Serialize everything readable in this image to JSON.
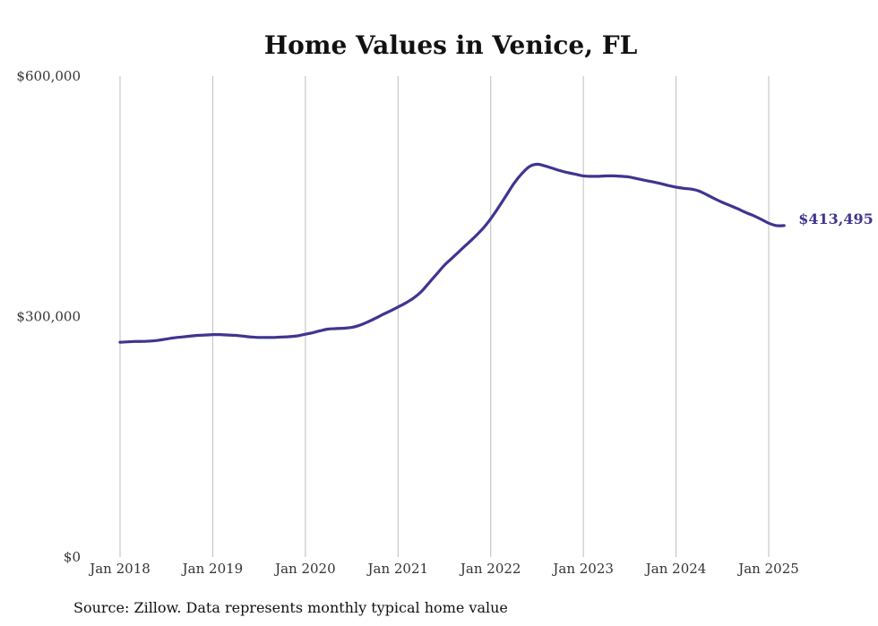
{
  "chart_data": {
    "type": "line",
    "title": "Home Values in Venice, FL",
    "xlabel": "",
    "ylabel": "",
    "ylim": [
      0,
      600000
    ],
    "y_ticks": [
      {
        "value": 0,
        "label": "$0"
      },
      {
        "value": 300000,
        "label": "$300,000"
      },
      {
        "value": 600000,
        "label": "$600,000"
      }
    ],
    "x_ticks": [
      {
        "value": "2018-01",
        "label": "Jan 2018"
      },
      {
        "value": "2019-01",
        "label": "Jan 2019"
      },
      {
        "value": "2020-01",
        "label": "Jan 2020"
      },
      {
        "value": "2021-01",
        "label": "Jan 2021"
      },
      {
        "value": "2022-01",
        "label": "Jan 2022"
      },
      {
        "value": "2023-01",
        "label": "Jan 2023"
      },
      {
        "value": "2024-01",
        "label": "Jan 2024"
      },
      {
        "value": "2025-01",
        "label": "Jan 2025"
      }
    ],
    "grid": {
      "vertical": true,
      "horizontal": false
    },
    "line_color": "#3f3590",
    "end_label": "$413,495",
    "series": [
      {
        "x": [
          "2018-01",
          "2018-02",
          "2018-03",
          "2018-04",
          "2018-05",
          "2018-06",
          "2018-07",
          "2018-08",
          "2018-09",
          "2018-10",
          "2018-11",
          "2018-12",
          "2019-01",
          "2019-02",
          "2019-03",
          "2019-04",
          "2019-05",
          "2019-06",
          "2019-07",
          "2019-08",
          "2019-09",
          "2019-10",
          "2019-11",
          "2019-12",
          "2020-01",
          "2020-02",
          "2020-03",
          "2020-04",
          "2020-05",
          "2020-06",
          "2020-07",
          "2020-08",
          "2020-09",
          "2020-10",
          "2020-11",
          "2020-12",
          "2021-01",
          "2021-02",
          "2021-03",
          "2021-04",
          "2021-05",
          "2021-06",
          "2021-07",
          "2021-08",
          "2021-09",
          "2021-10",
          "2021-11",
          "2021-12",
          "2022-01",
          "2022-02",
          "2022-03",
          "2022-04",
          "2022-05",
          "2022-06",
          "2022-07",
          "2022-08",
          "2022-09",
          "2022-10",
          "2022-11",
          "2022-12",
          "2023-01",
          "2023-02",
          "2023-03",
          "2023-04",
          "2023-05",
          "2023-06",
          "2023-07",
          "2023-08",
          "2023-09",
          "2023-10",
          "2023-11",
          "2023-12",
          "2024-01",
          "2024-02",
          "2024-03",
          "2024-04",
          "2024-05",
          "2024-06",
          "2024-07",
          "2024-08",
          "2024-09",
          "2024-10",
          "2024-11",
          "2024-12",
          "2025-01",
          "2025-02",
          "2025-03"
        ],
        "values": [
          268000,
          268500,
          269000,
          269000,
          269500,
          270500,
          272000,
          273500,
          274500,
          275500,
          276500,
          277000,
          277500,
          277500,
          277000,
          276500,
          275500,
          274500,
          274000,
          274000,
          274000,
          274500,
          275000,
          276000,
          278000,
          280000,
          282500,
          284500,
          285000,
          285500,
          286500,
          289000,
          293000,
          297500,
          302500,
          307000,
          312000,
          317000,
          323000,
          331000,
          342000,
          353000,
          364000,
          373000,
          382000,
          391000,
          400000,
          410000,
          422000,
          436000,
          451000,
          466000,
          478000,
          487000,
          490000,
          488000,
          485000,
          482000,
          479500,
          477500,
          475500,
          475000,
          475000,
          475500,
          475500,
          475000,
          474000,
          472000,
          470000,
          468000,
          466000,
          463500,
          461500,
          460000,
          459000,
          456500,
          452000,
          447000,
          442500,
          438500,
          434500,
          430000,
          426000,
          421500,
          416500,
          413495,
          413495
        ]
      }
    ]
  },
  "source_text": "Source: Zillow. Data represents monthly typical home value"
}
